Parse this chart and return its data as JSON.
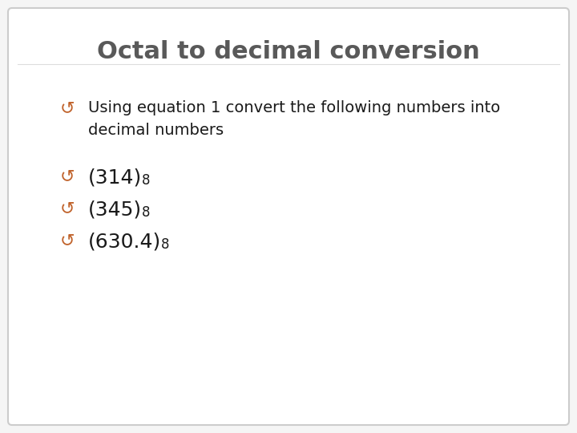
{
  "title": "Octal to decimal conversion",
  "title_color": "#595959",
  "title_fontsize": 22,
  "title_fontweight": "bold",
  "background_color": "#f5f5f5",
  "border_color": "#cccccc",
  "bullet_color": "#c0622a",
  "text_color": "#1a1a1a",
  "bullet_char": "↺",
  "bullet_line1": "Using equation 1 convert the following numbers into",
  "bullet_line2": "decimal numbers",
  "items": [
    {
      "main": "(314)",
      "sub": "8"
    },
    {
      "main": "(345)",
      "sub": "8"
    },
    {
      "main": "(630.4)",
      "sub": "8"
    }
  ],
  "item_fontsize": 18,
  "bullet_fontsize": 16,
  "text_fontsize": 14,
  "figsize": [
    7.2,
    5.4
  ],
  "dpi": 100
}
